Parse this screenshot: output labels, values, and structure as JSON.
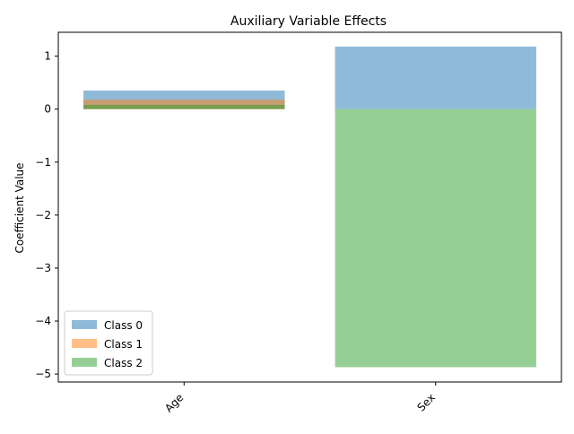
{
  "chart_data": {
    "type": "bar",
    "title": "Auxiliary Variable Effects",
    "xlabel": "",
    "ylabel": "Coefficient Value",
    "categories": [
      "Age",
      "Sex"
    ],
    "ylim": [
      -5.15,
      1.45
    ],
    "yticks": [
      1,
      0,
      -1,
      -2,
      -3,
      -4,
      -5
    ],
    "ytick_labels": [
      "1",
      "0",
      "−1",
      "−2",
      "−3",
      "−4",
      "−5"
    ],
    "grid": false,
    "overlapping_bars": true,
    "bar_opacity": 0.5,
    "legend_position": "lower-left",
    "series": [
      {
        "name": "Class 0",
        "color": "#1f77b4",
        "values": [
          0.35,
          1.18
        ]
      },
      {
        "name": "Class 1",
        "color": "#ff7f0e",
        "values": [
          0.18,
          0.0
        ]
      },
      {
        "name": "Class 2",
        "color": "#2ca02c",
        "values": [
          0.08,
          -4.87
        ]
      }
    ]
  }
}
